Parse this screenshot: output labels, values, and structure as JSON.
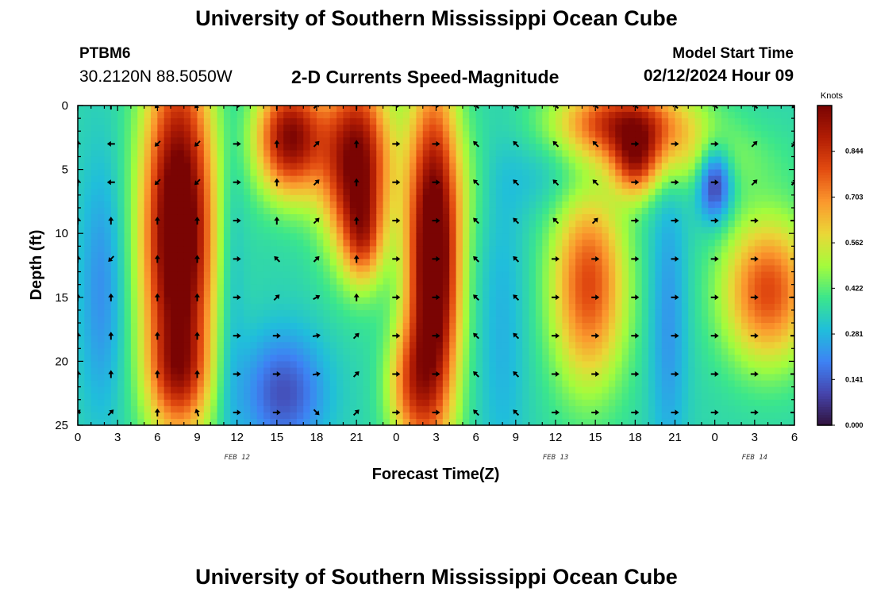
{
  "title": "University of Southern Mississippi Ocean Cube",
  "station": {
    "id": "PTBM6",
    "coords": "30.2120N  88.5050W"
  },
  "subtitle": "2-D Currents Speed-Magnitude",
  "model_start": {
    "label": "Model Start Time",
    "value": "02/12/2024 Hour 09"
  },
  "colors": {
    "low": "#30123b",
    "mid": "#3bd6a8",
    "high": "#7a0403"
  },
  "chart_data": {
    "type": "heatmap",
    "title": "2-D Currents Speed-Magnitude",
    "xlabel": "Forecast Time(Z)",
    "ylabel": "Depth (ft)",
    "xlim": [
      0,
      54
    ],
    "ylim": [
      25,
      0
    ],
    "x_ticks": [
      "0",
      "3",
      "6",
      "9",
      "12",
      "15",
      "18",
      "21",
      "0",
      "3",
      "6",
      "9",
      "12",
      "15",
      "18",
      "21",
      "0",
      "3",
      "6"
    ],
    "y_ticks": [
      "0",
      "5",
      "10",
      "15",
      "20",
      "25"
    ],
    "date_labels": [
      {
        "text": "FEB 12",
        "x_hours": 12
      },
      {
        "text": "FEB 13",
        "x_hours": 36
      },
      {
        "text": "FEB 14",
        "x_hours": 51
      }
    ],
    "colorbar": {
      "unit": "Knots",
      "min": 0.0,
      "max": 0.985,
      "ticks": [
        "0.844",
        "0.703",
        "0.562",
        "0.422",
        "0.281",
        "0.141",
        "0.000"
      ]
    },
    "blobs": [
      {
        "x": 1.8,
        "y": 14.5,
        "sx": 1.2,
        "sy": 7.0,
        "a": -0.14
      },
      {
        "x": 7.6,
        "y": 10.0,
        "sx": 1.9,
        "sy": 10.0,
        "a": 0.78
      },
      {
        "x": 7.6,
        "y": 21.0,
        "sx": 1.6,
        "sy": 2.6,
        "a": 0.2
      },
      {
        "x": 11.5,
        "y": 14.0,
        "sx": 0.8,
        "sy": 10.0,
        "a": -0.09
      },
      {
        "x": 16.0,
        "y": 2.5,
        "sx": 1.8,
        "sy": 3.2,
        "a": 0.62
      },
      {
        "x": 21.0,
        "y": 4.5,
        "sx": 1.8,
        "sy": 5.0,
        "a": 0.66
      },
      {
        "x": 21.5,
        "y": 10.5,
        "sx": 1.0,
        "sy": 2.5,
        "a": 0.25
      },
      {
        "x": 15.5,
        "y": 22.5,
        "sx": 2.2,
        "sy": 3.3,
        "a": -0.24
      },
      {
        "x": 26.8,
        "y": 12.0,
        "sx": 1.4,
        "sy": 9.5,
        "a": 0.78
      },
      {
        "x": 25.0,
        "y": 22.0,
        "sx": 1.3,
        "sy": 3.5,
        "a": 0.3
      },
      {
        "x": 29.5,
        "y": 6.0,
        "sx": 1.2,
        "sy": 3.2,
        "a": 0.05
      },
      {
        "x": 32.0,
        "y": 18.0,
        "sx": 1.3,
        "sy": 9.0,
        "a": -0.08
      },
      {
        "x": 38.5,
        "y": 14.0,
        "sx": 2.0,
        "sy": 5.6,
        "a": 0.45
      },
      {
        "x": 41.3,
        "y": 1.2,
        "sx": 3.5,
        "sy": 2.0,
        "a": 0.5
      },
      {
        "x": 42.0,
        "y": 4.5,
        "sx": 1.2,
        "sy": 2.0,
        "a": 0.35
      },
      {
        "x": 45.0,
        "y": 4.2,
        "sx": 4.5,
        "sy": 2.0,
        "a": 0.16
      },
      {
        "x": 44.5,
        "y": 17.0,
        "sx": 1.0,
        "sy": 8.0,
        "a": -0.13
      },
      {
        "x": 48.0,
        "y": 6.0,
        "sx": 0.9,
        "sy": 2.0,
        "a": -0.34
      },
      {
        "x": 52.0,
        "y": 14.5,
        "sx": 2.4,
        "sy": 4.0,
        "a": 0.45
      },
      {
        "x": 37.0,
        "y": 5.5,
        "sx": 3.5,
        "sy": 2.2,
        "a": -0.08
      }
    ],
    "arrow_x_hours": [
      0,
      2.5,
      6,
      9,
      12,
      15,
      18,
      21,
      24,
      27,
      30,
      33,
      36,
      39,
      42,
      45,
      48,
      51,
      54
    ],
    "arrow_depths": [
      0,
      3,
      6,
      9,
      12,
      15,
      18,
      21,
      24
    ],
    "arrow_angle_columns": [
      [
        90,
        90,
        90,
        90,
        90,
        90,
        90,
        90,
        45
      ],
      [
        90,
        180,
        180,
        90,
        225,
        90,
        90,
        90,
        45
      ],
      [
        225,
        225,
        225,
        90,
        90,
        90,
        90,
        90,
        90
      ],
      [
        225,
        225,
        225,
        90,
        90,
        90,
        90,
        90,
        110
      ],
      [
        0,
        0,
        0,
        0,
        0,
        0,
        0,
        0,
        0
      ],
      [
        90,
        90,
        90,
        90,
        135,
        45,
        0,
        0,
        0
      ],
      [
        45,
        45,
        45,
        45,
        45,
        30,
        10,
        10,
        315
      ],
      [
        90,
        90,
        90,
        90,
        90,
        90,
        45,
        45,
        45
      ],
      [
        0,
        0,
        0,
        0,
        0,
        0,
        0,
        0,
        0
      ],
      [
        0,
        0,
        0,
        0,
        0,
        0,
        0,
        0,
        0
      ],
      [
        135,
        135,
        135,
        135,
        135,
        135,
        135,
        135,
        135
      ],
      [
        135,
        135,
        135,
        135,
        135,
        135,
        135,
        135,
        135
      ],
      [
        135,
        135,
        135,
        135,
        0,
        0,
        0,
        0,
        0
      ],
      [
        135,
        135,
        135,
        45,
        0,
        0,
        0,
        0,
        0
      ],
      [
        135,
        0,
        0,
        0,
        0,
        0,
        0,
        0,
        0
      ],
      [
        135,
        0,
        0,
        0,
        0,
        0,
        0,
        0,
        0
      ],
      [
        135,
        0,
        0,
        0,
        0,
        0,
        0,
        0,
        0
      ],
      [
        135,
        45,
        45,
        0,
        0,
        0,
        0,
        0,
        0
      ],
      [
        225,
        45,
        45,
        0,
        0,
        0,
        0,
        0,
        0
      ]
    ]
  },
  "footer_title": "University of Southern Mississippi Ocean Cube"
}
